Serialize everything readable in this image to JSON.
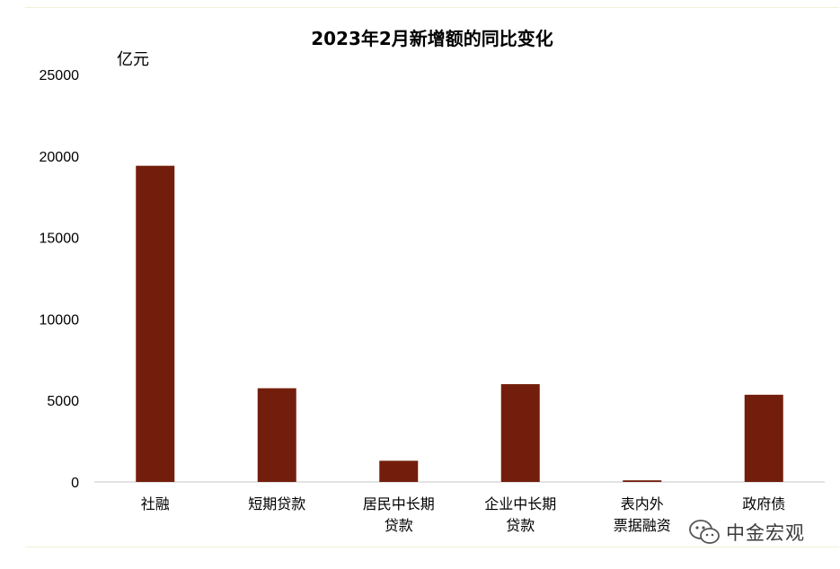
{
  "chart_data": {
    "type": "bar",
    "title": "2023年2月新增额的同比变化",
    "ylabel": "亿元",
    "xlabel": "",
    "ylim": [
      0,
      25000
    ],
    "yticks": [
      "0",
      "5000",
      "10000",
      "15000",
      "20000",
      "25000"
    ],
    "grid": false,
    "bar_color": "#731E0C",
    "categories": [
      [
        "社融"
      ],
      [
        "短期贷款"
      ],
      [
        "居民中长期",
        "贷款"
      ],
      [
        "企业中长期",
        "贷款"
      ],
      [
        "表内外",
        "票据融资"
      ],
      [
        "政府债"
      ]
    ],
    "values": [
      19400,
      5750,
      1300,
      6000,
      100,
      5350
    ]
  },
  "watermark": {
    "text": "中金宏观",
    "icon": "wechat-icon"
  }
}
